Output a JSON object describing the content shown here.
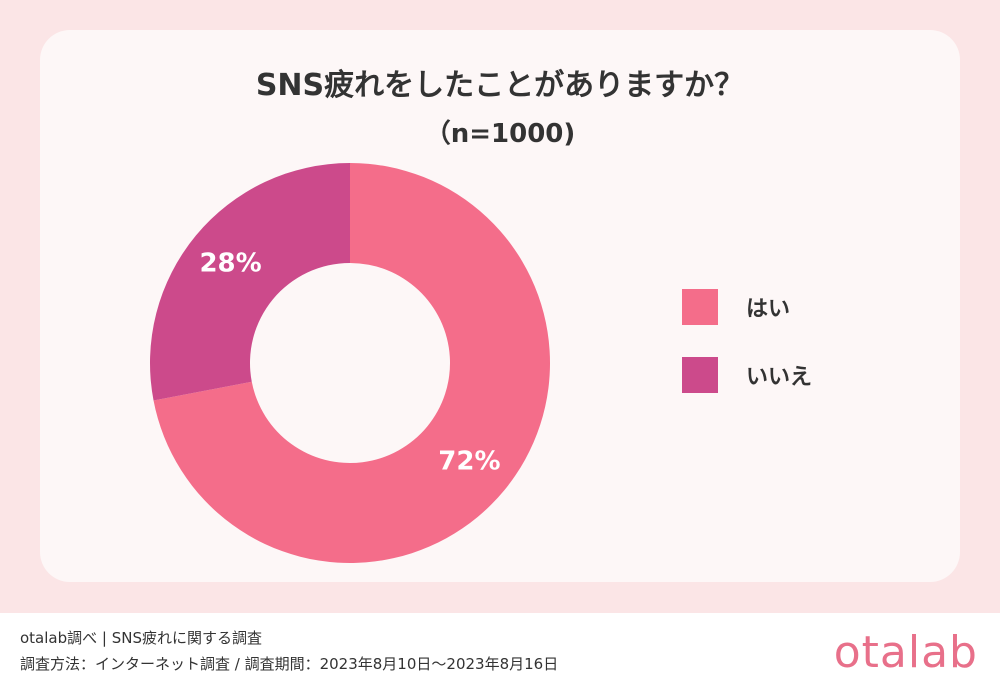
{
  "header": {
    "title": "SNS疲れをしたことがありますか？",
    "subtitle": "（n=1000)"
  },
  "chart_data": {
    "type": "pie",
    "style": "donut",
    "title": "SNS疲れをしたことがありますか？",
    "subtitle": "（n=1000)",
    "categories": [
      "はい",
      "いいえ"
    ],
    "values": [
      72,
      28
    ],
    "value_labels": [
      "72%",
      "28%"
    ],
    "colors": [
      "#f46d8a",
      "#cc4a8b"
    ],
    "legend": "right"
  },
  "legend": {
    "items": [
      {
        "label": "はい",
        "color": "#f46d8a"
      },
      {
        "label": "いいえ",
        "color": "#cc4a8b"
      }
    ]
  },
  "footer": {
    "line1": "otalab調べ | SNS疲れに関する調査",
    "line2": "調査方法：インターネット調査 / 調査期間：2023年8月10日〜2023年8月16日",
    "logo": "otalab"
  },
  "colors": {
    "background": "#fbe5e6",
    "card": "#fdf7f7",
    "text": "#333333",
    "logo": "#e8708a"
  }
}
